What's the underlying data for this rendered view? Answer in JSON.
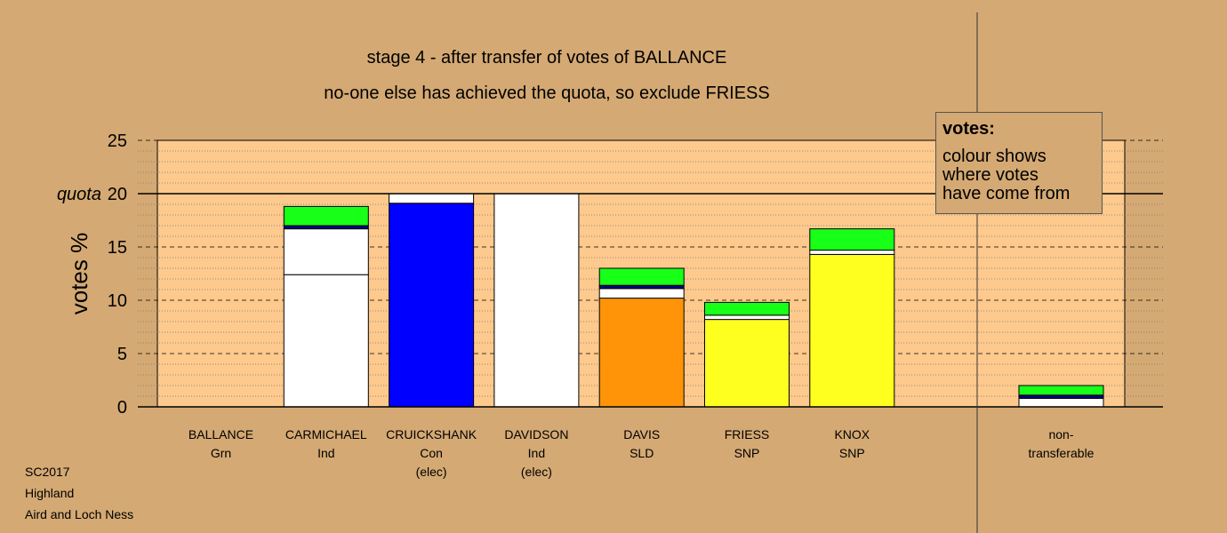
{
  "title": "stage 4 - after transfer of votes of BALLANCE",
  "subtitle": "no-one else has achieved the quota, so exclude FRIESS",
  "footer": [
    "SC2017",
    "Highland",
    "Aird and Loch Ness"
  ],
  "legend": {
    "title": "votes:",
    "lines": [
      "colour shows",
      "where votes",
      "have come from"
    ]
  },
  "colors": {
    "background": "#d4a973",
    "plot_area": "#fdc98d",
    "Ind": "#ffffff",
    "Con": "#0000ff",
    "SLD": "#ff9408",
    "SNP": "#ffff1f",
    "Grn": "#18ff18",
    "Lab": "#000080"
  },
  "chart_data": {
    "type": "bar",
    "stacked": true,
    "ylabel": "votes %",
    "ylim": [
      0,
      25
    ],
    "yticks": [
      0,
      5,
      10,
      15,
      20,
      25
    ],
    "quota": 20,
    "quota_label": "quota",
    "grid": true,
    "candidates": [
      {
        "name": "BALLANCE",
        "party": "Grn",
        "note": "",
        "segments": []
      },
      {
        "name": "CARMICHAEL",
        "party": "Ind",
        "note": "",
        "segments": [
          {
            "source": "Ind",
            "value": 12.4
          },
          {
            "source": "Ind",
            "value": 4.3
          },
          {
            "source": "Lab",
            "value": 0.3
          },
          {
            "source": "Grn",
            "value": 1.8
          }
        ]
      },
      {
        "name": "CRUICKSHANK",
        "party": "Con",
        "note": "(elec)",
        "segments": [
          {
            "source": "Con",
            "value": 19.1
          },
          {
            "source": "Ind",
            "value": 0.9
          }
        ]
      },
      {
        "name": "DAVIDSON",
        "party": "Ind",
        "note": "(elec)",
        "segments": [
          {
            "source": "Ind",
            "value": 20.0
          }
        ]
      },
      {
        "name": "DAVIS",
        "party": "SLD",
        "note": "",
        "segments": [
          {
            "source": "SLD",
            "value": 10.2
          },
          {
            "source": "Ind",
            "value": 0.9
          },
          {
            "source": "Lab",
            "value": 0.3
          },
          {
            "source": "Grn",
            "value": 1.6
          }
        ]
      },
      {
        "name": "FRIESS",
        "party": "SNP",
        "note": "",
        "segments": [
          {
            "source": "SNP",
            "value": 8.2
          },
          {
            "source": "Ind",
            "value": 0.4
          },
          {
            "source": "Grn",
            "value": 1.2
          }
        ]
      },
      {
        "name": "KNOX",
        "party": "SNP",
        "note": "",
        "segments": [
          {
            "source": "SNP",
            "value": 14.3
          },
          {
            "source": "Ind",
            "value": 0.4
          },
          {
            "source": "Grn",
            "value": 2.0
          }
        ]
      }
    ],
    "non_transferable": {
      "label_lines": [
        "non-",
        "transferable"
      ],
      "segments": [
        {
          "source": "Ind",
          "value": 0.8
        },
        {
          "source": "Lab",
          "value": 0.3
        },
        {
          "source": "Grn",
          "value": 0.9
        }
      ]
    }
  }
}
